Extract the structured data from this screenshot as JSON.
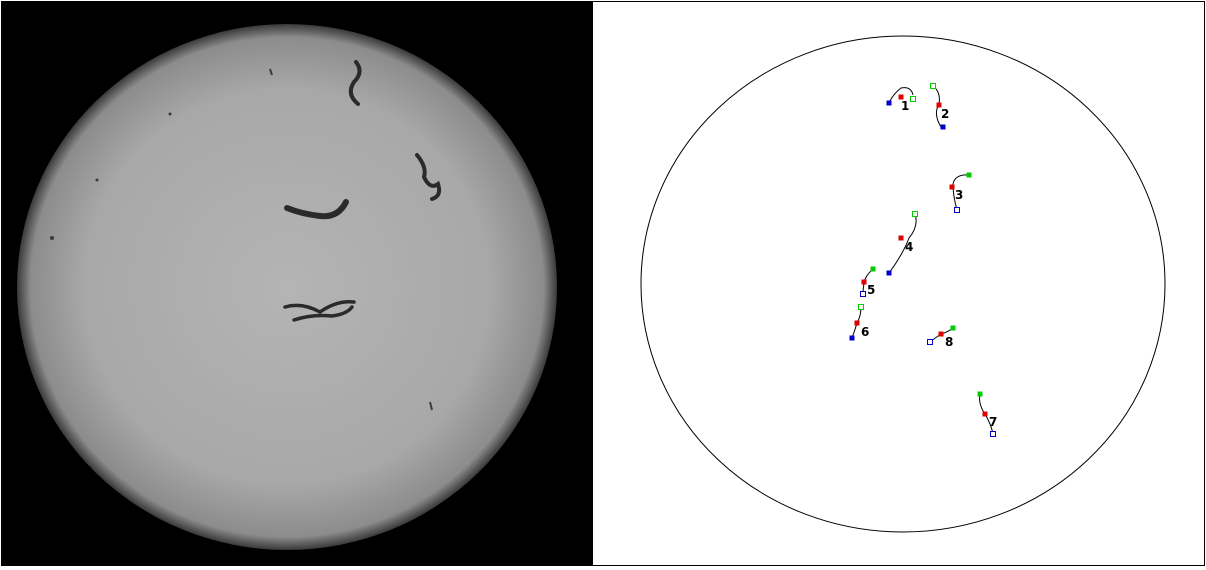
{
  "colors": {
    "track_line": "#000000",
    "start_marker": "#00cc00",
    "current_marker": "#e00000",
    "end_marker": "#0000cc",
    "plate_border": "#000000"
  },
  "tracks": [
    {
      "label": "1",
      "start_filled": false,
      "end_filled": true
    },
    {
      "label": "2",
      "start_filled": false,
      "end_filled": true
    },
    {
      "label": "3",
      "start_filled": true,
      "end_filled": false
    },
    {
      "label": "4",
      "start_filled": false,
      "end_filled": true
    },
    {
      "label": "5",
      "start_filled": true,
      "end_filled": false
    },
    {
      "label": "6",
      "start_filled": false,
      "end_filled": true
    },
    {
      "label": "7",
      "start_filled": true,
      "end_filled": false
    },
    {
      "label": "8",
      "start_filled": true,
      "end_filled": false
    }
  ]
}
